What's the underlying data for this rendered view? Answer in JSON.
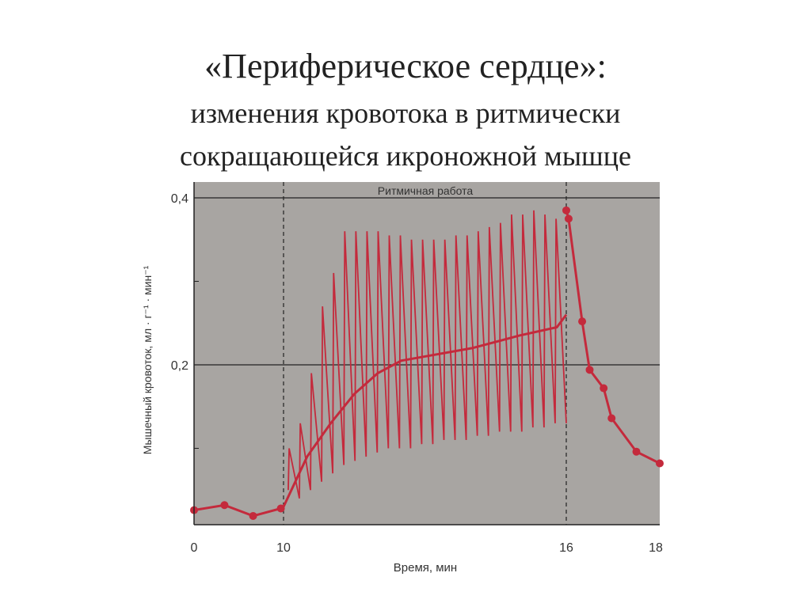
{
  "slide": {
    "title": "«Периферическое сердце»:",
    "subtitle_line1": "изменения кровотока в ритмически",
    "subtitle_line2": "сокращающейся икроножной мышце"
  },
  "colors": {
    "plot_bg": "#a8a5a2",
    "series": "#c42a3c",
    "grid": "#222222"
  },
  "chart_data": {
    "type": "line",
    "title": "",
    "xlabel": "Время, мин",
    "ylabel": "Мышечный кровоток, мл · г⁻¹ · мин⁻¹",
    "xlim": [
      0,
      18
    ],
    "ylim": [
      0,
      0.4
    ],
    "x_scale": "non-uniform (0–10 compressed, 10–16 expanded)",
    "x_ticks": [
      "0",
      "10",
      "16",
      "18"
    ],
    "y_ticks": [
      "0,2",
      "0,4"
    ],
    "y_minor_ticks": [
      0.1,
      0.3
    ],
    "grid": "horizontal lines at 0.2 and 0.4; dashed vertical lines at 10 and 16",
    "annotation": "Ритмичная работа",
    "rest_before": {
      "x": [
        0,
        3.4,
        6.6,
        9.7,
        10
      ],
      "y": [
        0.026,
        0.032,
        0.019,
        0.028,
        0.03
      ]
    },
    "recovery": {
      "x": [
        16,
        16.05,
        16.34,
        16.5,
        16.8,
        16.97,
        17.5,
        18
      ],
      "y": [
        0.385,
        0.375,
        0.252,
        0.194,
        0.172,
        0.136,
        0.096,
        0.082
      ]
    },
    "oscillation": {
      "x_start": 10.1,
      "x_end": 16,
      "peaks": [
        0.1,
        0.13,
        0.19,
        0.27,
        0.31,
        0.36,
        0.36,
        0.36,
        0.36,
        0.355,
        0.355,
        0.35,
        0.35,
        0.35,
        0.35,
        0.355,
        0.355,
        0.36,
        0.365,
        0.37,
        0.38,
        0.38,
        0.385,
        0.38,
        0.375
      ],
      "troughs": [
        0.05,
        0.04,
        0.05,
        0.06,
        0.07,
        0.08,
        0.085,
        0.09,
        0.095,
        0.1,
        0.1,
        0.1,
        0.105,
        0.105,
        0.11,
        0.11,
        0.11,
        0.115,
        0.115,
        0.12,
        0.12,
        0.12,
        0.125,
        0.125,
        0.13
      ]
    },
    "mean_flow": {
      "x": [
        10,
        10.5,
        11,
        11.5,
        12,
        12.5,
        13,
        14,
        15,
        15.8,
        16
      ],
      "y": [
        0.03,
        0.09,
        0.13,
        0.165,
        0.19,
        0.205,
        0.21,
        0.22,
        0.235,
        0.245,
        0.26
      ]
    }
  }
}
